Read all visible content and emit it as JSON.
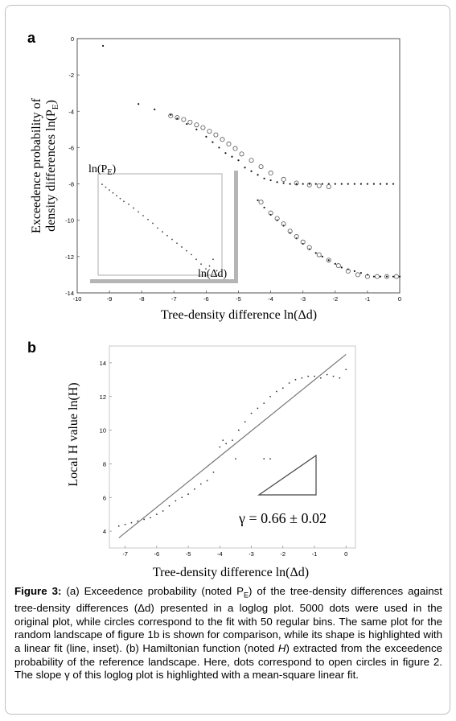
{
  "chart_data": [
    {
      "panel": "a",
      "type": "scatter",
      "xlabel": "Tree-density difference ln(Δd)",
      "ylabel_line1": "Exceedence probability of",
      "ylabel_line2": "density differences ln(P",
      "ylabel_sub": "E",
      "ylabel_close": ")",
      "xlim": [
        -10,
        0
      ],
      "ylim": [
        -14,
        0
      ],
      "xticks": [
        "-10",
        "-9",
        "-8",
        "-7",
        "-6",
        "-5",
        "-4",
        "-3",
        "-2",
        "-1",
        "0"
      ],
      "yticks": [
        "-14",
        "-12",
        "-10",
        "-8",
        "-6",
        "-4",
        "-2",
        "0"
      ],
      "series": [
        {
          "kind": "dots",
          "segment": "upper",
          "x": [
            -9.2,
            -8.1,
            -7.6,
            -7.1,
            -6.9,
            -6.6,
            -6.3,
            -6.0,
            -5.8,
            -5.6,
            -5.4,
            -5.2,
            -5.0,
            -4.8,
            -4.6,
            -4.4,
            -4.2,
            -4.0,
            -3.8,
            -3.6,
            -3.4,
            -3.2,
            -3.0,
            -2.8,
            -2.6,
            -2.4,
            -2.2,
            -2.0,
            -1.8,
            -1.6,
            -1.4,
            -1.2,
            -1.0,
            -0.8,
            -0.6,
            -0.4,
            -0.2
          ],
          "y": [
            -0.4,
            -3.6,
            -3.9,
            -4.2,
            -4.4,
            -4.7,
            -5.0,
            -5.4,
            -5.7,
            -6.0,
            -6.3,
            -6.5,
            -6.7,
            -7.1,
            -7.3,
            -7.5,
            -7.7,
            -7.8,
            -7.9,
            -7.95,
            -8.0,
            -8.0,
            -8.0,
            -8.0,
            -8.0,
            -8.0,
            -8.0,
            -8.0,
            -8.0,
            -8.0,
            -8.0,
            -8.0,
            -8.0,
            -8.0,
            -8.0,
            -8.0,
            -8.0
          ]
        },
        {
          "kind": "circles",
          "segment": "upper",
          "x": [
            -7.1,
            -6.9,
            -6.7,
            -6.5,
            -6.3,
            -6.1,
            -5.9,
            -5.7,
            -5.5,
            -5.3,
            -5.1,
            -4.9,
            -4.6,
            -4.3,
            -4.0,
            -3.6,
            -3.2,
            -2.8,
            -2.5,
            -2.2
          ],
          "y": [
            -4.25,
            -4.35,
            -4.45,
            -4.6,
            -4.75,
            -4.9,
            -5.1,
            -5.3,
            -5.55,
            -5.8,
            -6.05,
            -6.35,
            -6.7,
            -7.05,
            -7.4,
            -7.75,
            -7.95,
            -8.05,
            -8.1,
            -8.15
          ]
        },
        {
          "kind": "dots",
          "segment": "lower",
          "x": [
            -4.4,
            -4.2,
            -4.0,
            -3.8,
            -3.6,
            -3.4,
            -3.2,
            -3.0,
            -2.8,
            -2.6,
            -2.4,
            -2.2,
            -2.0,
            -1.8,
            -1.6,
            -1.4,
            -1.2,
            -1.0,
            -0.8,
            -0.6,
            -0.4,
            -0.2,
            0.0
          ],
          "y": [
            -8.9,
            -9.3,
            -9.7,
            -10.0,
            -10.3,
            -10.7,
            -11.0,
            -11.3,
            -11.6,
            -11.8,
            -12.0,
            -12.2,
            -12.4,
            -12.6,
            -12.7,
            -12.8,
            -12.9,
            -13.0,
            -13.1,
            -13.1,
            -13.1,
            -13.1,
            -13.1
          ]
        },
        {
          "kind": "circles",
          "segment": "lower",
          "x": [
            -4.3,
            -4.0,
            -3.8,
            -3.6,
            -3.4,
            -3.2,
            -3.0,
            -2.8,
            -2.5,
            -2.2,
            -1.9,
            -1.6,
            -1.3,
            -1.0,
            -0.7,
            -0.4,
            -0.1
          ],
          "y": [
            -9.0,
            -9.6,
            -9.9,
            -10.2,
            -10.6,
            -10.9,
            -11.2,
            -11.5,
            -11.9,
            -12.2,
            -12.5,
            -12.8,
            -13.0,
            -13.1,
            -13.1,
            -13.1,
            -13.1
          ]
        }
      ],
      "inset": {
        "ylabel_main": "ln(P",
        "ylabel_sub": "E",
        "ylabel_close": ")",
        "xlabel": "ln(Δd)",
        "points": [
          0.02,
          0.05,
          0.08,
          0.11,
          0.14,
          0.17,
          0.2,
          0.24,
          0.28,
          0.32,
          0.36,
          0.4,
          0.44,
          0.48,
          0.52,
          0.56,
          0.6,
          0.64,
          0.68,
          0.72,
          0.76,
          0.8,
          0.84,
          0.88,
          0.91,
          0.94,
          0.97
        ],
        "values": [
          0.06,
          0.09,
          0.12,
          0.15,
          0.18,
          0.21,
          0.24,
          0.27,
          0.31,
          0.35,
          0.39,
          0.43,
          0.47,
          0.52,
          0.56,
          0.6,
          0.64,
          0.68,
          0.72,
          0.76,
          0.8,
          0.85,
          0.9,
          0.95,
          0.92,
          0.85,
          0.97
        ]
      }
    },
    {
      "panel": "b",
      "type": "scatter",
      "xlabel": "Tree-density difference ln(Δd)",
      "ylabel": "Local H value ln(H)",
      "xlim": [
        -7.5,
        0.3
      ],
      "ylim": [
        3,
        15
      ],
      "xticks": [
        "-7",
        "-6",
        "-5",
        "-4",
        "-3",
        "-2",
        "-1",
        "0"
      ],
      "yticks": [
        "4",
        "6",
        "8",
        "10",
        "12",
        "14"
      ],
      "x": [
        -7.2,
        -7.0,
        -6.8,
        -6.6,
        -6.4,
        -6.2,
        -6.0,
        -5.8,
        -5.6,
        -5.4,
        -5.2,
        -5.0,
        -4.8,
        -4.6,
        -4.4,
        -4.2,
        -4.0,
        -3.9,
        -3.8,
        -3.6,
        -3.4,
        -3.2,
        -3.0,
        -2.8,
        -2.6,
        -2.4,
        -2.2,
        -2.0,
        -1.8,
        -1.6,
        -1.4,
        -1.2,
        -1.0,
        -0.8,
        -0.6,
        -0.4,
        -0.2,
        0.0,
        -2.6,
        -2.4,
        -3.5
      ],
      "y": [
        4.3,
        4.4,
        4.5,
        4.6,
        4.7,
        4.8,
        5.0,
        5.2,
        5.5,
        5.8,
        6.0,
        6.2,
        6.5,
        6.8,
        7.0,
        7.5,
        9.0,
        9.4,
        9.2,
        9.4,
        10.0,
        10.5,
        11.0,
        11.3,
        11.6,
        12.0,
        12.3,
        12.5,
        12.8,
        13.0,
        13.1,
        13.2,
        13.2,
        13.1,
        13.3,
        13.2,
        13.1,
        13.6,
        8.3,
        8.3,
        8.3
      ],
      "fit_line": {
        "x": [
          -7.2,
          0.0
        ],
        "y": [
          3.6,
          14.5
        ]
      },
      "annotation": "γ = 0.66 ± 0.02"
    }
  ],
  "labels": {
    "panel_a": "a",
    "panel_b": "b"
  },
  "caption": {
    "figure_label": "Figure 3:",
    "part1": " (a) Exceedence probability (noted P",
    "sub_e": "E",
    "part2": ") of the tree-density differences against tree-density differences (Δd) presented in a loglog plot. 5000 dots were used in the original plot, while circles correspond to the fit with 50 regular bins. The same plot for the random landscape of figure 1b is shown for comparison, while its shape is highlighted with a linear fit (line, inset). (b) Hamiltonian function (noted ",
    "h_italic": "H",
    "part3": ") extracted from the exceedence probability of the reference landscape. Here, dots correspond to open circles in figure 2. The slope γ of this loglog plot is highlighted with a mean-square linear fit."
  }
}
